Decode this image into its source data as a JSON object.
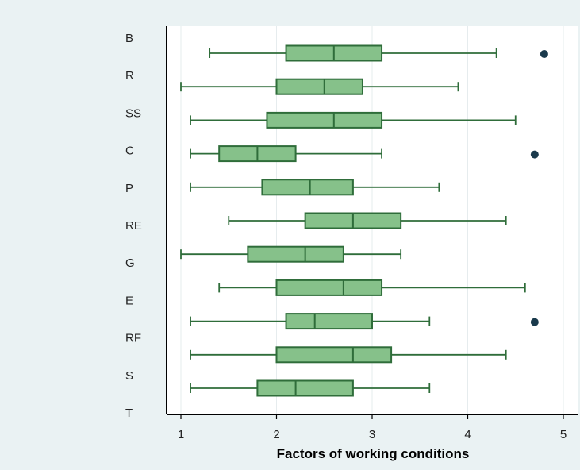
{
  "chart_data": {
    "type": "boxplot",
    "orientation": "horizontal",
    "xlabel": "Factors of working conditions",
    "xlim": [
      0.85,
      5.15
    ],
    "xticks": [
      1,
      2,
      3,
      4,
      5
    ],
    "grid": true,
    "colors": {
      "box_fill": "#86c18a",
      "box_edge": "#2f6d3a",
      "outlier": "#1a3a4c",
      "background": "#eaf2f3"
    },
    "categories": [
      "B",
      "R",
      "SS",
      "C",
      "P",
      "RE",
      "G",
      "E",
      "RF",
      "S",
      "T"
    ],
    "boxes": [
      {
        "label": "B",
        "min": 1.3,
        "q1": 2.1,
        "median": 2.6,
        "q3": 3.1,
        "max": 4.3,
        "outliers": [
          4.8
        ]
      },
      {
        "label": "R",
        "min": 1.0,
        "q1": 2.0,
        "median": 2.5,
        "q3": 2.9,
        "max": 3.9,
        "outliers": []
      },
      {
        "label": "SS",
        "min": 1.1,
        "q1": 1.9,
        "median": 2.6,
        "q3": 3.1,
        "max": 4.5,
        "outliers": []
      },
      {
        "label": "C",
        "min": 1.1,
        "q1": 1.4,
        "median": 1.8,
        "q3": 2.2,
        "max": 3.1,
        "outliers": [
          4.7
        ]
      },
      {
        "label": "P",
        "min": 1.1,
        "q1": 1.85,
        "median": 2.35,
        "q3": 2.8,
        "max": 3.7,
        "outliers": []
      },
      {
        "label": "RE",
        "min": 1.5,
        "q1": 2.3,
        "median": 2.8,
        "q3": 3.3,
        "max": 4.4,
        "outliers": []
      },
      {
        "label": "G",
        "min": 1.0,
        "q1": 1.7,
        "median": 2.3,
        "q3": 2.7,
        "max": 3.3,
        "outliers": []
      },
      {
        "label": "E",
        "min": 1.4,
        "q1": 2.0,
        "median": 2.7,
        "q3": 3.1,
        "max": 4.6,
        "outliers": []
      },
      {
        "label": "RF",
        "min": 1.1,
        "q1": 2.1,
        "median": 2.4,
        "q3": 3.0,
        "max": 3.6,
        "outliers": [
          4.7
        ]
      },
      {
        "label": "S",
        "min": 1.1,
        "q1": 2.0,
        "median": 2.8,
        "q3": 3.2,
        "max": 4.4,
        "outliers": []
      },
      {
        "label": "T",
        "min": 1.1,
        "q1": 1.8,
        "median": 2.2,
        "q3": 2.8,
        "max": 3.6,
        "outliers": []
      }
    ]
  }
}
